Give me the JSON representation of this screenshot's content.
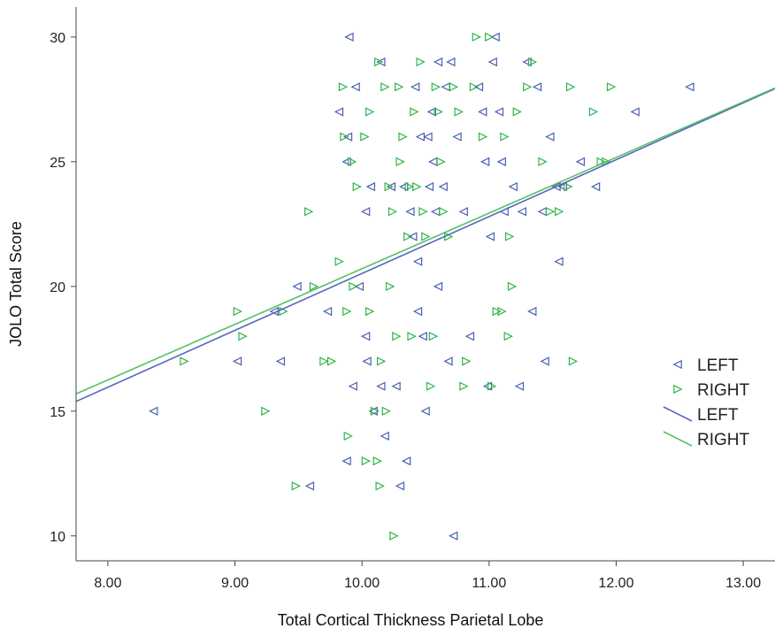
{
  "chart_data": {
    "type": "scatter",
    "title": "",
    "xlabel": "Total Cortical Thickness Parietal Lobe",
    "ylabel": "JOLO Total Score",
    "xlim": [
      7.75,
      13.25
    ],
    "ylim": [
      9.0,
      31.2
    ],
    "x_ticks": [
      "8.00",
      "9.00",
      "10.00",
      "11.00",
      "12.00",
      "13.00"
    ],
    "y_ticks": [
      "10",
      "15",
      "20",
      "25",
      "30"
    ],
    "grid": false,
    "legend_position": "right",
    "series": [
      {
        "name": "LEFT",
        "marker": "triangle-left",
        "color": "#4a5fb0",
        "points": [
          [
            8.36,
            15
          ],
          [
            9.02,
            17
          ],
          [
            9.31,
            19
          ],
          [
            9.36,
            17
          ],
          [
            9.49,
            20
          ],
          [
            9.59,
            12
          ],
          [
            9.73,
            19
          ],
          [
            9.82,
            27
          ],
          [
            9.88,
            25
          ],
          [
            9.89,
            26
          ],
          [
            9.9,
            30
          ],
          [
            9.93,
            16
          ],
          [
            9.95,
            28
          ],
          [
            9.98,
            20
          ],
          [
            9.88,
            13
          ],
          [
            10.03,
            18
          ],
          [
            10.03,
            23
          ],
          [
            10.04,
            17
          ],
          [
            10.07,
            24
          ],
          [
            10.09,
            15
          ],
          [
            10.15,
            29
          ],
          [
            10.15,
            16
          ],
          [
            10.18,
            14
          ],
          [
            10.23,
            24
          ],
          [
            10.27,
            16
          ],
          [
            10.3,
            12
          ],
          [
            10.33,
            24
          ],
          [
            10.35,
            13
          ],
          [
            10.38,
            23
          ],
          [
            10.4,
            22
          ],
          [
            10.42,
            28
          ],
          [
            10.44,
            19
          ],
          [
            10.44,
            21
          ],
          [
            10.46,
            26
          ],
          [
            10.48,
            18
          ],
          [
            10.5,
            15
          ],
          [
            10.52,
            26
          ],
          [
            10.53,
            24
          ],
          [
            10.55,
            27
          ],
          [
            10.56,
            25
          ],
          [
            10.58,
            23
          ],
          [
            10.6,
            29
          ],
          [
            10.6,
            20
          ],
          [
            10.64,
            24
          ],
          [
            10.66,
            28
          ],
          [
            10.68,
            17
          ],
          [
            10.7,
            29
          ],
          [
            10.72,
            10
          ],
          [
            10.75,
            26
          ],
          [
            10.8,
            23
          ],
          [
            10.85,
            18
          ],
          [
            10.92,
            28
          ],
          [
            10.95,
            27
          ],
          [
            10.97,
            25
          ],
          [
            10.99,
            16
          ],
          [
            11.01,
            22
          ],
          [
            11.03,
            29
          ],
          [
            11.05,
            30
          ],
          [
            11.08,
            27
          ],
          [
            11.1,
            25
          ],
          [
            11.12,
            23
          ],
          [
            11.19,
            24
          ],
          [
            11.24,
            16
          ],
          [
            11.26,
            23
          ],
          [
            11.3,
            29
          ],
          [
            11.34,
            19
          ],
          [
            11.38,
            28
          ],
          [
            11.42,
            23
          ],
          [
            11.44,
            17
          ],
          [
            11.48,
            26
          ],
          [
            11.53,
            24
          ],
          [
            11.55,
            21
          ],
          [
            11.58,
            24
          ],
          [
            11.72,
            25
          ],
          [
            11.84,
            24
          ],
          [
            12.15,
            27
          ],
          [
            12.58,
            28
          ]
        ]
      },
      {
        "name": "RIGHT",
        "marker": "triangle-right",
        "color": "#33b34a",
        "points": [
          [
            8.6,
            17
          ],
          [
            9.02,
            19
          ],
          [
            9.06,
            18
          ],
          [
            9.24,
            15
          ],
          [
            9.38,
            19
          ],
          [
            9.48,
            12
          ],
          [
            9.58,
            23
          ],
          [
            9.62,
            20
          ],
          [
            9.7,
            17
          ],
          [
            9.76,
            17
          ],
          [
            9.82,
            21
          ],
          [
            9.85,
            28
          ],
          [
            9.86,
            26
          ],
          [
            9.88,
            19
          ],
          [
            9.89,
            14
          ],
          [
            9.92,
            25
          ],
          [
            9.93,
            20
          ],
          [
            9.96,
            24
          ],
          [
            10.02,
            26
          ],
          [
            10.03,
            13
          ],
          [
            10.06,
            19
          ],
          [
            10.06,
            27
          ],
          [
            10.1,
            15
          ],
          [
            10.12,
            13
          ],
          [
            10.13,
            29
          ],
          [
            10.14,
            12
          ],
          [
            10.15,
            17
          ],
          [
            10.18,
            28
          ],
          [
            10.19,
            15
          ],
          [
            10.21,
            24
          ],
          [
            10.22,
            20
          ],
          [
            10.24,
            23
          ],
          [
            10.25,
            10
          ],
          [
            10.27,
            18
          ],
          [
            10.29,
            28
          ],
          [
            10.3,
            25
          ],
          [
            10.32,
            26
          ],
          [
            10.36,
            22
          ],
          [
            10.37,
            24
          ],
          [
            10.39,
            18
          ],
          [
            10.41,
            27
          ],
          [
            10.43,
            24
          ],
          [
            10.46,
            29
          ],
          [
            10.48,
            23
          ],
          [
            10.5,
            22
          ],
          [
            10.54,
            16
          ],
          [
            10.56,
            18
          ],
          [
            10.58,
            28
          ],
          [
            10.6,
            27
          ],
          [
            10.62,
            25
          ],
          [
            10.64,
            23
          ],
          [
            10.68,
            22
          ],
          [
            10.72,
            28
          ],
          [
            10.76,
            27
          ],
          [
            10.8,
            16
          ],
          [
            10.82,
            17
          ],
          [
            10.88,
            28
          ],
          [
            10.9,
            30
          ],
          [
            10.95,
            26
          ],
          [
            11.0,
            30
          ],
          [
            11.02,
            16
          ],
          [
            11.06,
            19
          ],
          [
            11.1,
            19
          ],
          [
            11.12,
            26
          ],
          [
            11.15,
            18
          ],
          [
            11.16,
            22
          ],
          [
            11.18,
            20
          ],
          [
            11.22,
            27
          ],
          [
            11.3,
            28
          ],
          [
            11.34,
            29
          ],
          [
            11.42,
            25
          ],
          [
            11.48,
            23
          ],
          [
            11.55,
            23
          ],
          [
            11.62,
            24
          ],
          [
            11.64,
            28
          ],
          [
            11.66,
            17
          ],
          [
            11.82,
            27
          ],
          [
            11.88,
            25
          ],
          [
            11.92,
            25
          ],
          [
            11.96,
            28
          ]
        ]
      }
    ],
    "fit_lines": [
      {
        "name": "LEFT",
        "color": "#5566c0",
        "intercept": -2.28,
        "slope": 2.28
      },
      {
        "name": "RIGHT",
        "color": "#55c060",
        "intercept": -1.59,
        "slope": 2.23
      }
    ],
    "legend": [
      {
        "label": "LEFT",
        "kind": "marker",
        "marker": "triangle-left",
        "color": "#4a5fb0"
      },
      {
        "label": "RIGHT",
        "kind": "marker",
        "marker": "triangle-right",
        "color": "#33b34a"
      },
      {
        "label": "LEFT",
        "kind": "line",
        "color": "#5566c0"
      },
      {
        "label": "RIGHT",
        "kind": "line",
        "color": "#55c060"
      }
    ]
  }
}
